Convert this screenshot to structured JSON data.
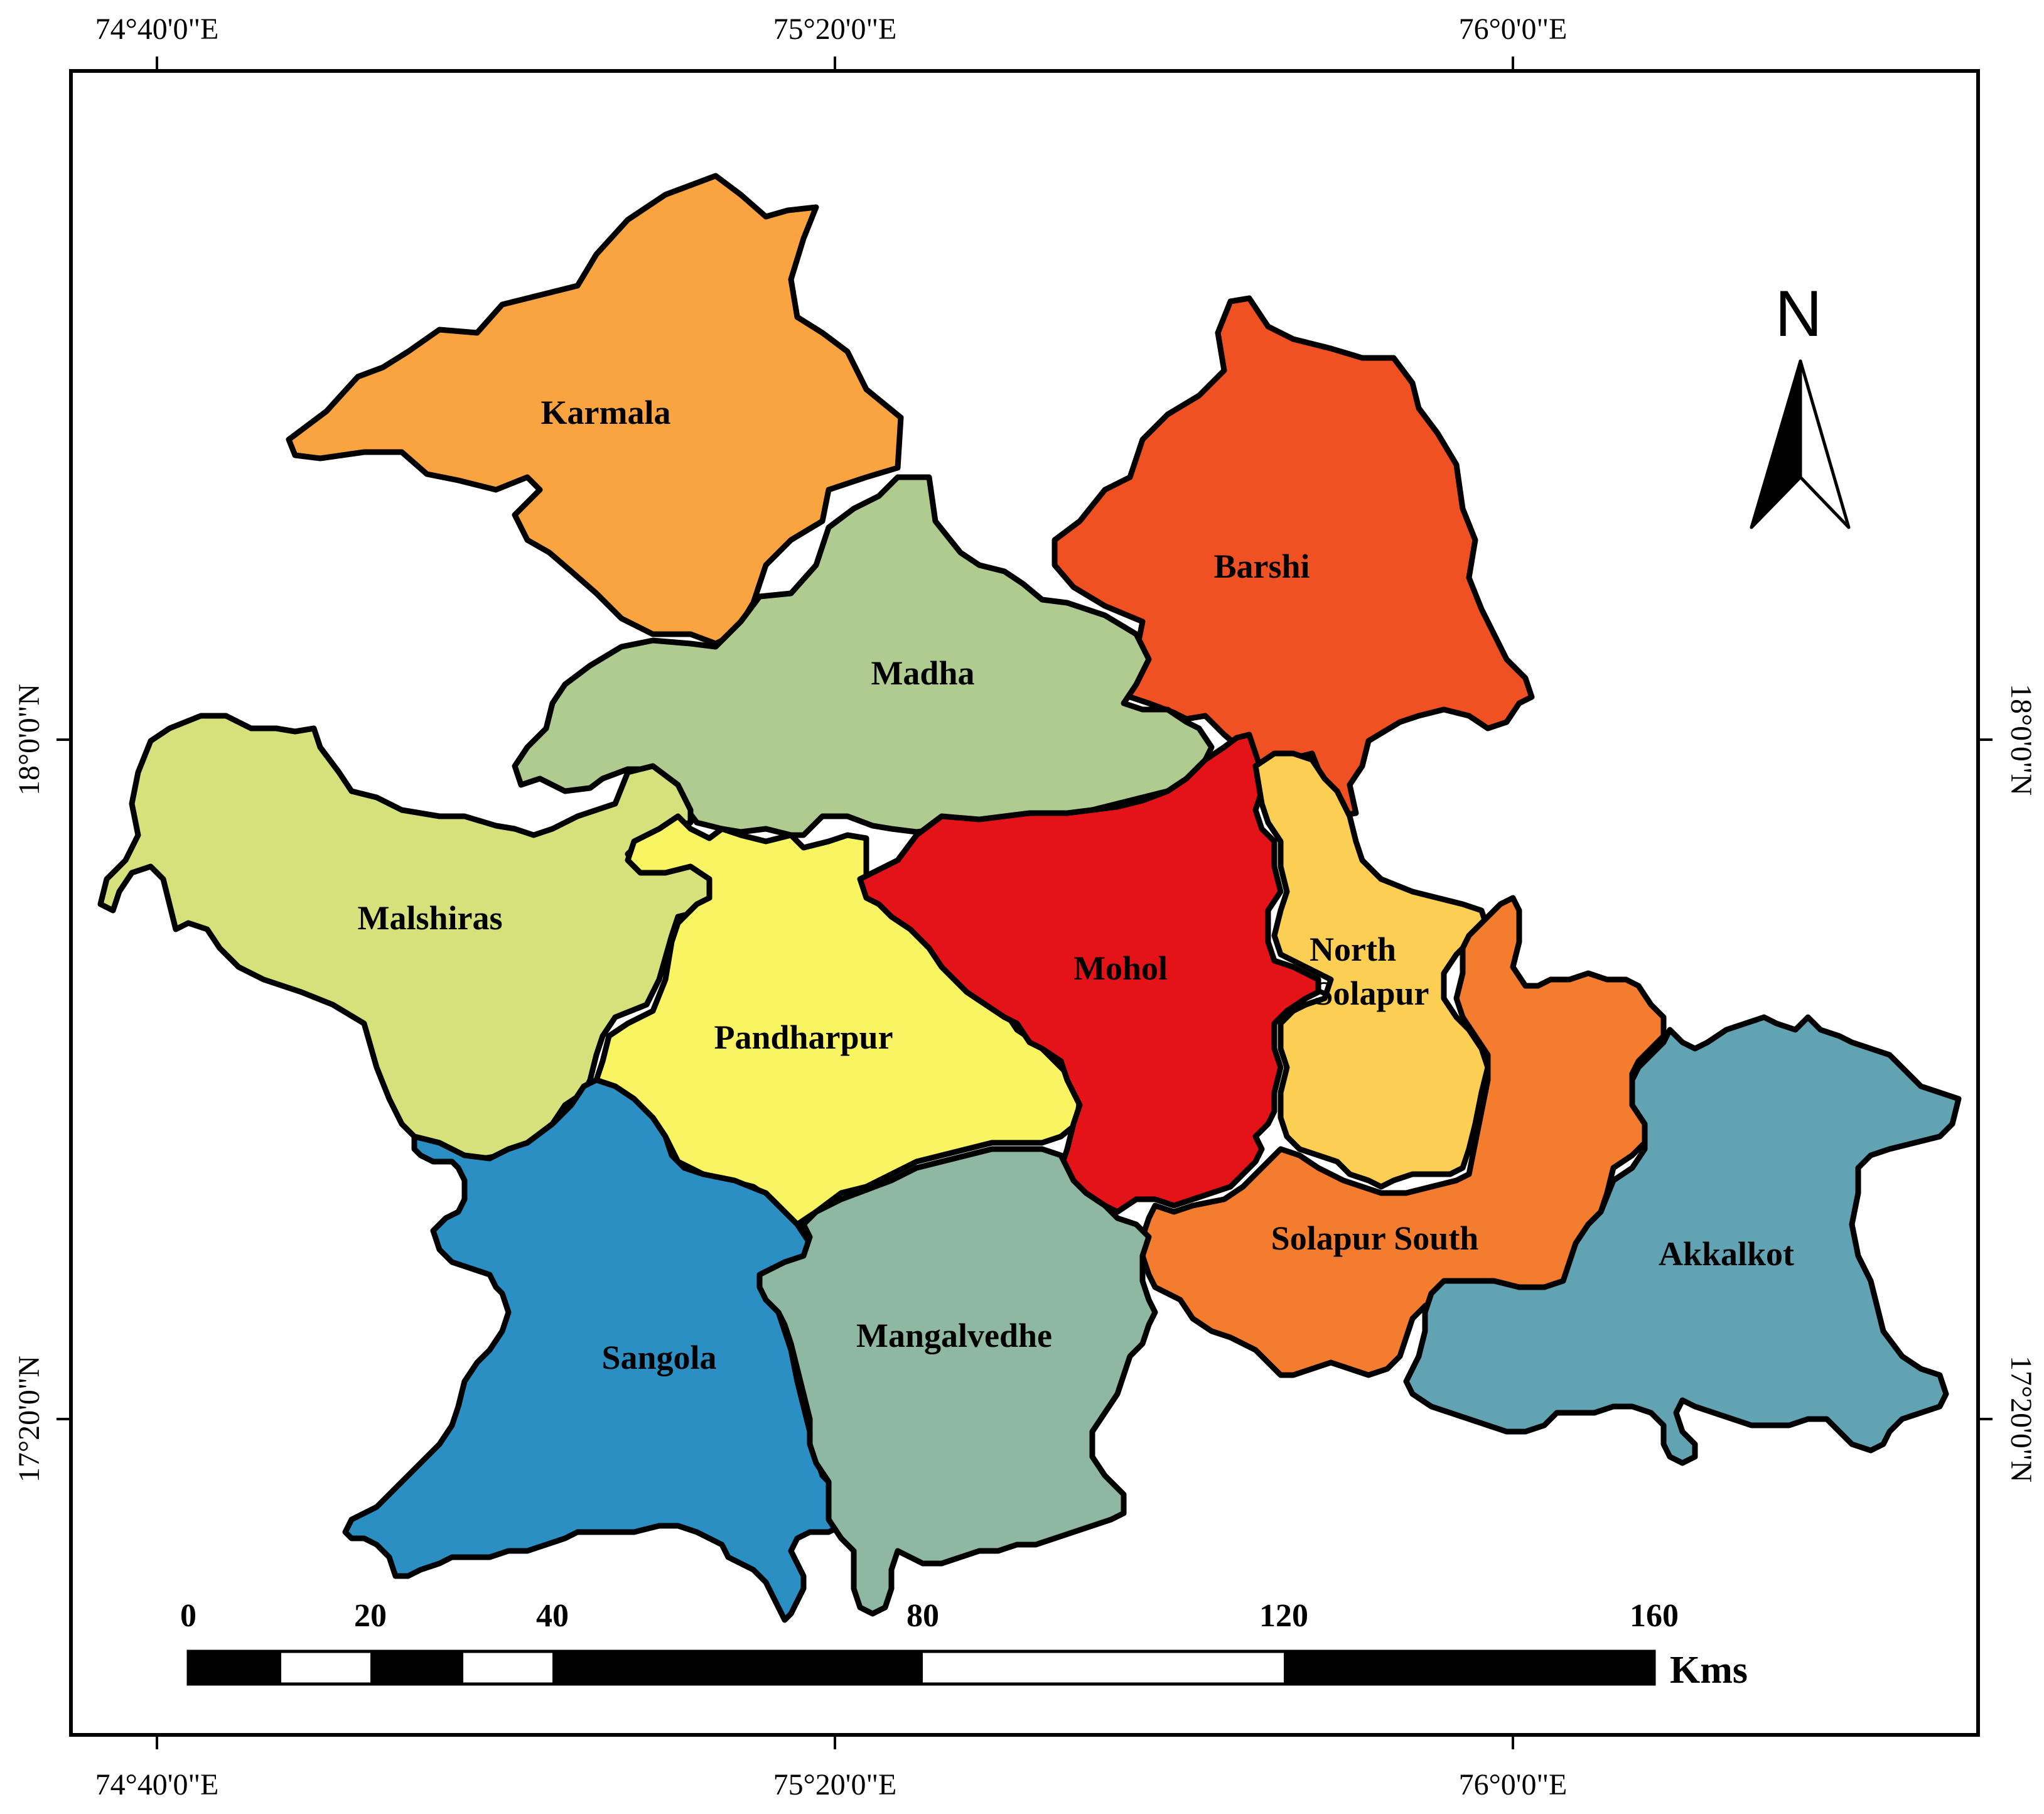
{
  "map": {
    "graticule": {
      "top_labels": [
        "74°40'0\"E",
        "75°20'0\"E",
        "76°0'0\"E"
      ],
      "bottom_labels": [
        "74°40'0\"E",
        "75°20'0\"E",
        "76°0'0\"E"
      ],
      "left_labels": [
        "18°0'0\"N",
        "17°20'0\"N"
      ],
      "right_labels": [
        "18°0'0\"N",
        "17°20'0\"N"
      ]
    },
    "talukas": [
      {
        "name": "Karmala",
        "color": "#F9A441"
      },
      {
        "name": "Barshi",
        "color": "#EF5122"
      },
      {
        "name": "Madha",
        "color": "#AFCB90"
      },
      {
        "name": "Malshiras",
        "color": "#D7E17C"
      },
      {
        "name": "Pandharpur",
        "color": "#F9F562"
      },
      {
        "name": "Mohol",
        "color": "#E31318"
      },
      {
        "name": "North Solapur",
        "line1": "North",
        "line2": "Solapur",
        "color": "#FBCE54"
      },
      {
        "name": "Solapur South",
        "color": "#F47C2F"
      },
      {
        "name": "Akkalkot",
        "color": "#62A3B3"
      },
      {
        "name": "Sangola",
        "color": "#2B8FC4"
      },
      {
        "name": "Mangalvedhe",
        "color": "#8EB8A2"
      }
    ],
    "north_arrow": {
      "label": "N"
    },
    "scale_bar": {
      "ticks": [
        "0",
        "20",
        "40",
        "80",
        "120",
        "160"
      ],
      "unit": "Kms"
    }
  }
}
